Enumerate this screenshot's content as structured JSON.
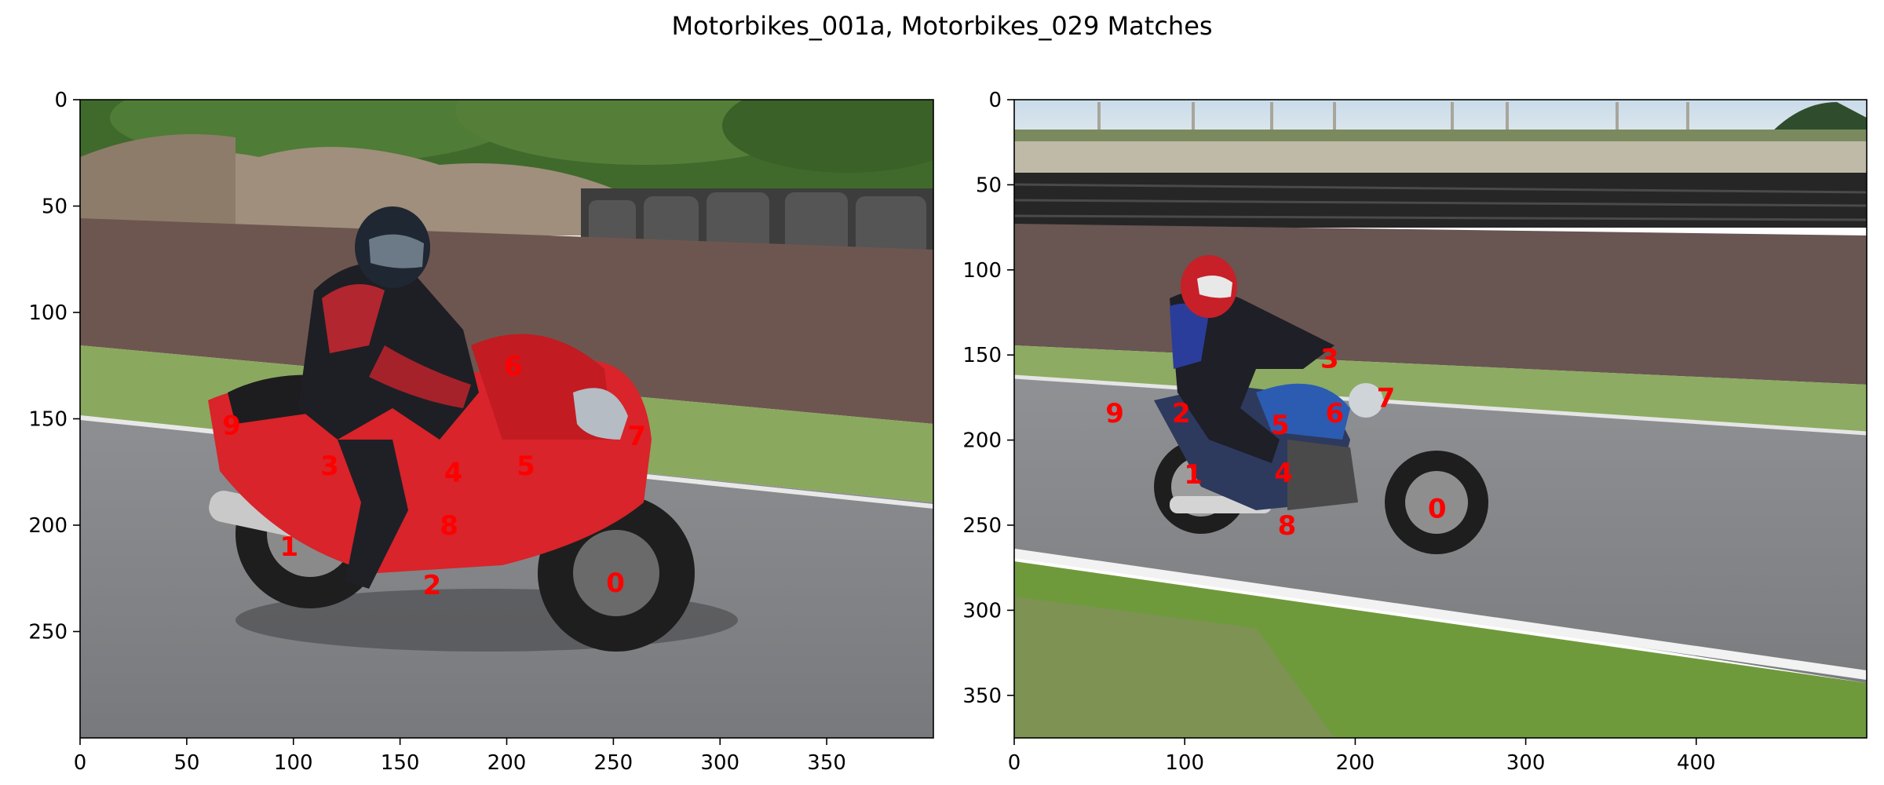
{
  "figure": {
    "title": "Motorbikes_001a, Motorbikes_029 Matches"
  },
  "chart_data": [
    {
      "type": "scatter",
      "image_name": "Motorbikes_001a",
      "image_description": "Rider in black and red suit on a red sport motorcycle on an asphalt track, dirt mounds and tire stacks behind",
      "xlim": [
        0,
        400
      ],
      "ylim": [
        300,
        0
      ],
      "xticks": [
        0,
        50,
        100,
        150,
        200,
        250,
        300,
        350
      ],
      "yticks": [
        0,
        50,
        100,
        150,
        200,
        250
      ],
      "grid": false,
      "keypoints": [
        {
          "label": "0",
          "x": 251,
          "y": 227
        },
        {
          "label": "1",
          "x": 98,
          "y": 210
        },
        {
          "label": "2",
          "x": 165,
          "y": 228
        },
        {
          "label": "3",
          "x": 117,
          "y": 172
        },
        {
          "label": "4",
          "x": 175,
          "y": 175
        },
        {
          "label": "5",
          "x": 209,
          "y": 172
        },
        {
          "label": "6",
          "x": 203,
          "y": 125
        },
        {
          "label": "7",
          "x": 261,
          "y": 158
        },
        {
          "label": "8",
          "x": 173,
          "y": 200
        },
        {
          "label": "9",
          "x": 71,
          "y": 153
        }
      ]
    },
    {
      "type": "scatter",
      "image_name": "Motorbikes_029",
      "image_description": "Rider in blue suit and red helmet on a blue motorcycle on an asphalt track with a wall of tires behind",
      "xlim": [
        0,
        500
      ],
      "ylim": [
        375,
        0
      ],
      "xticks": [
        0,
        100,
        200,
        300,
        400
      ],
      "yticks": [
        0,
        50,
        100,
        150,
        200,
        250,
        300,
        350
      ],
      "grid": false,
      "keypoints": [
        {
          "label": "0",
          "x": 248,
          "y": 240
        },
        {
          "label": "1",
          "x": 105,
          "y": 220
        },
        {
          "label": "2",
          "x": 98,
          "y": 184
        },
        {
          "label": "3",
          "x": 185,
          "y": 152
        },
        {
          "label": "4",
          "x": 158,
          "y": 219
        },
        {
          "label": "5",
          "x": 156,
          "y": 191
        },
        {
          "label": "6",
          "x": 188,
          "y": 184
        },
        {
          "label": "7",
          "x": 218,
          "y": 175
        },
        {
          "label": "8",
          "x": 160,
          "y": 250
        },
        {
          "label": "9",
          "x": 59,
          "y": 184
        }
      ]
    }
  ]
}
